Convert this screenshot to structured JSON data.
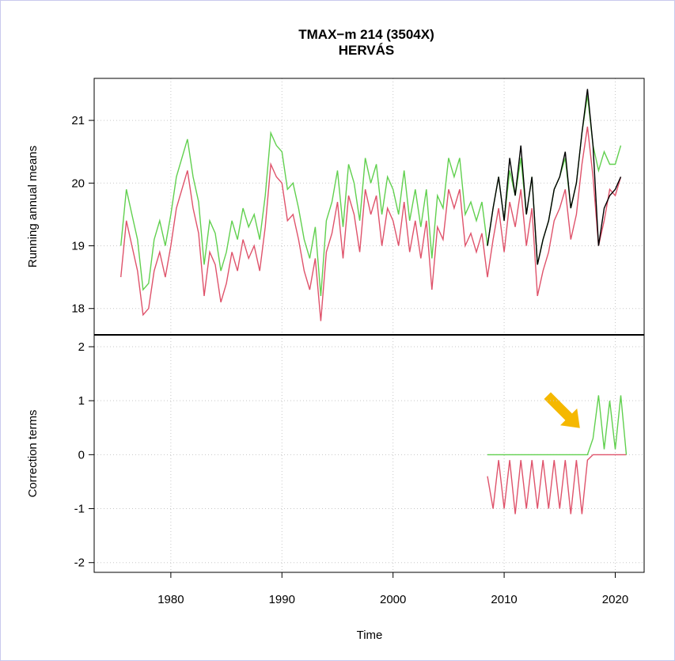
{
  "chart_data": [
    {
      "type": "line",
      "title": "TMAX−m   214 (3504X)",
      "subtitle": "HERVÁS",
      "ylabel": "Running annual means",
      "xlim": [
        1973.1,
        2022.6
      ],
      "ylim": [
        17.58,
        21.67
      ],
      "yticks": [
        18,
        19,
        20,
        21
      ],
      "xticks": [
        1980,
        1990,
        2000,
        2010,
        2020
      ],
      "grid": true,
      "series": [
        {
          "color": "#df536b",
          "x": [
            1975.5,
            1976,
            1976.5,
            1977,
            1977.5,
            1978,
            1978.5,
            1979,
            1979.5,
            1980,
            1980.5,
            1981,
            1981.5,
            1982,
            1982.5,
            1983,
            1983.5,
            1984,
            1984.5,
            1985,
            1985.5,
            1986,
            1986.5,
            1987,
            1987.5,
            1988,
            1988.5,
            1989,
            1989.5,
            1990,
            1990.5,
            1991,
            1991.5,
            1992,
            1992.5,
            1993,
            1993.5,
            1994,
            1994.5,
            1995,
            1995.5,
            1996,
            1996.5,
            1997,
            1997.5,
            1998,
            1998.5,
            1999,
            1999.5,
            2000,
            2000.5,
            2001,
            2001.5,
            2002,
            2002.5,
            2003,
            2003.5,
            2004,
            2004.5,
            2005,
            2005.5,
            2006,
            2006.5,
            2007,
            2007.5,
            2008,
            2008.5,
            2009,
            2009.5,
            2010,
            2010.5,
            2011,
            2011.5,
            2012,
            2012.5,
            2013,
            2013.5,
            2014,
            2014.5,
            2015,
            2015.5,
            2016,
            2016.5,
            2017,
            2017.5,
            2018,
            2018.5,
            2019,
            2019.5,
            2020,
            2020.5
          ],
          "values": [
            18.5,
            19.4,
            19.0,
            18.6,
            17.9,
            18.0,
            18.6,
            18.9,
            18.5,
            19.0,
            19.6,
            19.9,
            20.2,
            19.6,
            19.2,
            18.2,
            18.9,
            18.7,
            18.1,
            18.4,
            18.9,
            18.6,
            19.1,
            18.8,
            19.0,
            18.6,
            19.3,
            20.3,
            20.1,
            20.0,
            19.4,
            19.5,
            19.1,
            18.6,
            18.3,
            18.8,
            17.8,
            18.9,
            19.2,
            19.7,
            18.8,
            19.8,
            19.5,
            18.9,
            19.9,
            19.5,
            19.8,
            19.0,
            19.6,
            19.4,
            19.0,
            19.7,
            18.9,
            19.4,
            18.8,
            19.4,
            18.3,
            19.3,
            19.1,
            19.9,
            19.6,
            19.9,
            19.0,
            19.2,
            18.9,
            19.2,
            18.5,
            19.1,
            19.6,
            18.9,
            19.7,
            19.3,
            19.9,
            19.0,
            19.6,
            18.2,
            18.6,
            18.9,
            19.4,
            19.6,
            19.9,
            19.1,
            19.5,
            20.3,
            20.9,
            20.1,
            19.0,
            19.4,
            19.9,
            19.8,
            20.1
          ]
        },
        {
          "color": "#61d04f",
          "x": [
            1975.5,
            1976,
            1976.5,
            1977,
            1977.5,
            1978,
            1978.5,
            1979,
            1979.5,
            1980,
            1980.5,
            1981,
            1981.5,
            1982,
            1982.5,
            1983,
            1983.5,
            1984,
            1984.5,
            1985,
            1985.5,
            1986,
            1986.5,
            1987,
            1987.5,
            1988,
            1988.5,
            1989,
            1989.5,
            1990,
            1990.5,
            1991,
            1991.5,
            1992,
            1992.5,
            1993,
            1993.5,
            1994,
            1994.5,
            1995,
            1995.5,
            1996,
            1996.5,
            1997,
            1997.5,
            1998,
            1998.5,
            1999,
            1999.5,
            2000,
            2000.5,
            2001,
            2001.5,
            2002,
            2002.5,
            2003,
            2003.5,
            2004,
            2004.5,
            2005,
            2005.5,
            2006,
            2006.5,
            2007,
            2007.5,
            2008,
            2008.5,
            2009,
            2009.5,
            2010,
            2010.5,
            2011,
            2011.5,
            2012,
            2012.5,
            2013,
            2013.5,
            2014,
            2014.5,
            2015,
            2015.5,
            2016,
            2016.5,
            2017,
            2017.5,
            2018,
            2018.5,
            2019,
            2019.5,
            2020,
            2020.5
          ],
          "values": [
            19.0,
            19.9,
            19.5,
            19.1,
            18.3,
            18.4,
            19.1,
            19.4,
            19.0,
            19.5,
            20.1,
            20.4,
            20.7,
            20.1,
            19.7,
            18.7,
            19.4,
            19.2,
            18.6,
            18.9,
            19.4,
            19.1,
            19.6,
            19.3,
            19.5,
            19.1,
            19.8,
            20.8,
            20.6,
            20.5,
            19.9,
            20.0,
            19.6,
            19.1,
            18.8,
            19.3,
            18.2,
            19.4,
            19.7,
            20.2,
            19.3,
            20.3,
            20.0,
            19.4,
            20.4,
            20.0,
            20.3,
            19.5,
            20.1,
            19.9,
            19.5,
            20.2,
            19.4,
            19.9,
            19.3,
            19.9,
            18.8,
            19.8,
            19.6,
            20.4,
            20.1,
            20.4,
            19.5,
            19.7,
            19.4,
            19.7,
            19.0,
            19.6,
            20.1,
            19.4,
            20.2,
            19.8,
            20.4,
            19.5,
            20.1,
            18.7,
            19.1,
            19.4,
            19.9,
            20.1,
            20.4,
            19.6,
            20.0,
            20.8,
            21.4,
            20.6,
            20.2,
            20.5,
            20.3,
            20.3,
            20.6
          ]
        },
        {
          "color": "#000000",
          "x": [
            2008.5,
            2009,
            2009.5,
            2010,
            2010.5,
            2011,
            2011.5,
            2012,
            2012.5,
            2013,
            2013.5,
            2014,
            2014.5,
            2015,
            2015.5,
            2016,
            2016.5,
            2017,
            2017.5,
            2018,
            2018.5,
            2019,
            2019.5,
            2020,
            2020.5
          ],
          "values": [
            19.0,
            19.6,
            20.1,
            19.4,
            20.4,
            19.8,
            20.6,
            19.5,
            20.1,
            18.7,
            19.1,
            19.4,
            19.9,
            20.1,
            20.5,
            19.6,
            20.0,
            20.8,
            21.5,
            20.6,
            19.0,
            19.6,
            19.8,
            19.9,
            20.1
          ]
        }
      ]
    },
    {
      "type": "line",
      "ylabel": "Correction terms",
      "xlabel": "Time",
      "xlim": [
        1973.1,
        2022.6
      ],
      "ylim": [
        -2.18,
        2.22
      ],
      "yticks": [
        -2,
        -1,
        0,
        1,
        2
      ],
      "xticks": [
        1980,
        1990,
        2000,
        2010,
        2020
      ],
      "grid": true,
      "series": [
        {
          "color": "#df536b",
          "x": [
            2008.5,
            2009,
            2009.5,
            2010,
            2010.5,
            2011,
            2011.5,
            2012,
            2012.5,
            2013,
            2013.5,
            2014,
            2014.5,
            2015,
            2015.5,
            2016,
            2016.5,
            2017,
            2017.5,
            2018,
            2018.5,
            2019,
            2019.5,
            2020,
            2020.5,
            2021
          ],
          "values": [
            -0.4,
            -1.0,
            -0.1,
            -1.0,
            -0.1,
            -1.1,
            -0.1,
            -1.0,
            -0.1,
            -1.0,
            -0.1,
            -1.0,
            -0.1,
            -1.0,
            -0.1,
            -1.1,
            -0.1,
            -1.1,
            -0.1,
            0,
            0,
            0,
            0,
            0,
            0,
            0
          ]
        },
        {
          "color": "#61d04f",
          "x": [
            2008.5,
            2009,
            2009.5,
            2010,
            2010.5,
            2011,
            2011.5,
            2012,
            2012.5,
            2013,
            2013.5,
            2014,
            2014.5,
            2015,
            2015.5,
            2016,
            2016.5,
            2017,
            2017.5,
            2018,
            2018.5,
            2019,
            2019.5,
            2020,
            2020.5,
            2021
          ],
          "values": [
            0,
            0,
            0,
            0,
            0,
            0,
            0,
            0,
            0,
            0,
            0,
            0,
            0,
            0,
            0,
            0,
            0,
            0,
            0,
            0.3,
            1.1,
            0.1,
            1.0,
            0.1,
            1.1,
            0
          ]
        }
      ]
    }
  ]
}
